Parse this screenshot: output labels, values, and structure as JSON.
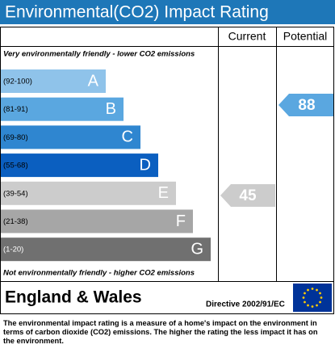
{
  "header": {
    "title": "Environmental(CO2) Impact Rating"
  },
  "columns": {
    "current": "Current",
    "potential": "Potential"
  },
  "top_note": "Very environmentally friendly - lower CO2 emissions",
  "bands": [
    {
      "range": "(92-100)",
      "letter": "A"
    },
    {
      "range": "(81-91)",
      "letter": "B"
    },
    {
      "range": "(69-80)",
      "letter": "C"
    },
    {
      "range": "(55-68)",
      "letter": "D"
    },
    {
      "range": "(39-54)",
      "letter": "E"
    },
    {
      "range": "(21-38)",
      "letter": "F"
    },
    {
      "range": "(1-20)",
      "letter": "G"
    }
  ],
  "bottom_note": "Not environmentally friendly - higher CO2 emissions",
  "current": {
    "rating": 45
  },
  "potential": {
    "rating": 88
  },
  "footer": {
    "region": "England & Wales",
    "directive": "Directive 2002/91/EC"
  },
  "description": "The environmental impact rating is a measure of a home's impact on the environment in terms of carbon dioxide (CO2) emissions. The higher the rating the less impact it has on the environment."
}
